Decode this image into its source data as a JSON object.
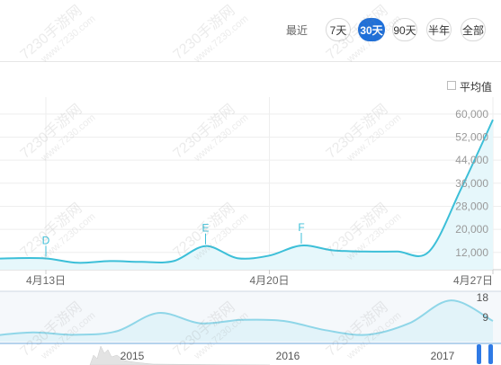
{
  "toolbar": {
    "prefix": "最近",
    "buttons": [
      {
        "label": "7天",
        "active": false
      },
      {
        "label": "30天",
        "active": true
      },
      {
        "label": "90天",
        "active": false
      },
      {
        "label": "半年",
        "active": false
      },
      {
        "label": "全部",
        "active": false
      }
    ]
  },
  "legend": {
    "average_label": "平均值",
    "checked": false
  },
  "watermark": {
    "text": "7230手游网",
    "url": "www.7230.com"
  },
  "chart_data": [
    {
      "type": "area",
      "title": "",
      "x_tick_labels": [
        "4月13日",
        "4月20日",
        "4月27日"
      ],
      "y_tick_labels": [
        "12,000",
        "20,000",
        "28,000",
        "36,000",
        "44,000",
        "52,000",
        "60,000"
      ],
      "ylim": [
        6000,
        64000
      ],
      "grid": true,
      "series": [
        {
          "points": [
            {
              "day": "4月11日",
              "value": 9600
            },
            {
              "day": "4月12日",
              "value": 10000
            },
            {
              "day": "4月13日",
              "value": 9900
            },
            {
              "day": "4月14日",
              "value": 8400
            },
            {
              "day": "4月15日",
              "value": 9000
            },
            {
              "day": "4月16日",
              "value": 8700
            },
            {
              "day": "4月17日",
              "value": 9000
            },
            {
              "day": "4月18日",
              "value": 14200
            },
            {
              "day": "4月19日",
              "value": 10000
            },
            {
              "day": "4月20日",
              "value": 10900
            },
            {
              "day": "4月21日",
              "value": 14400
            },
            {
              "day": "4月22日",
              "value": 12700
            },
            {
              "day": "4月23日",
              "value": 12300
            },
            {
              "day": "4月24日",
              "value": 12300
            },
            {
              "day": "4月25日",
              "value": 12300
            },
            {
              "day": "4月26日",
              "value": 34000
            },
            {
              "day": "4月27日",
              "value": 58000
            }
          ]
        }
      ],
      "event_markers": [
        {
          "label": "D",
          "day": "4月13日"
        },
        {
          "label": "E",
          "day": "4月18日"
        },
        {
          "label": "F",
          "day": "4月21日"
        }
      ]
    },
    {
      "type": "area",
      "title": "navigator",
      "x_tick_labels": [
        "2015",
        "2016",
        "2017"
      ],
      "y_tick_labels": [
        "18",
        "9"
      ],
      "ylim": [
        0,
        20
      ],
      "series": [
        {
          "points": [
            {
              "x": 0,
              "value": 2.5
            },
            {
              "x": 1,
              "value": 4.0
            },
            {
              "x": 2,
              "value": 3.0
            },
            {
              "x": 3,
              "value": 4.5
            },
            {
              "x": 4,
              "value": 12.5
            },
            {
              "x": 5,
              "value": 8.0
            },
            {
              "x": 6,
              "value": 9.5
            },
            {
              "x": 7,
              "value": 9.0
            },
            {
              "x": 8,
              "value": 5.0
            },
            {
              "x": 9,
              "value": 3.0
            },
            {
              "x": 10,
              "value": 8.0
            },
            {
              "x": 11,
              "value": 18.0
            },
            {
              "x": 12,
              "value": 9.0
            }
          ]
        }
      ]
    }
  ]
}
